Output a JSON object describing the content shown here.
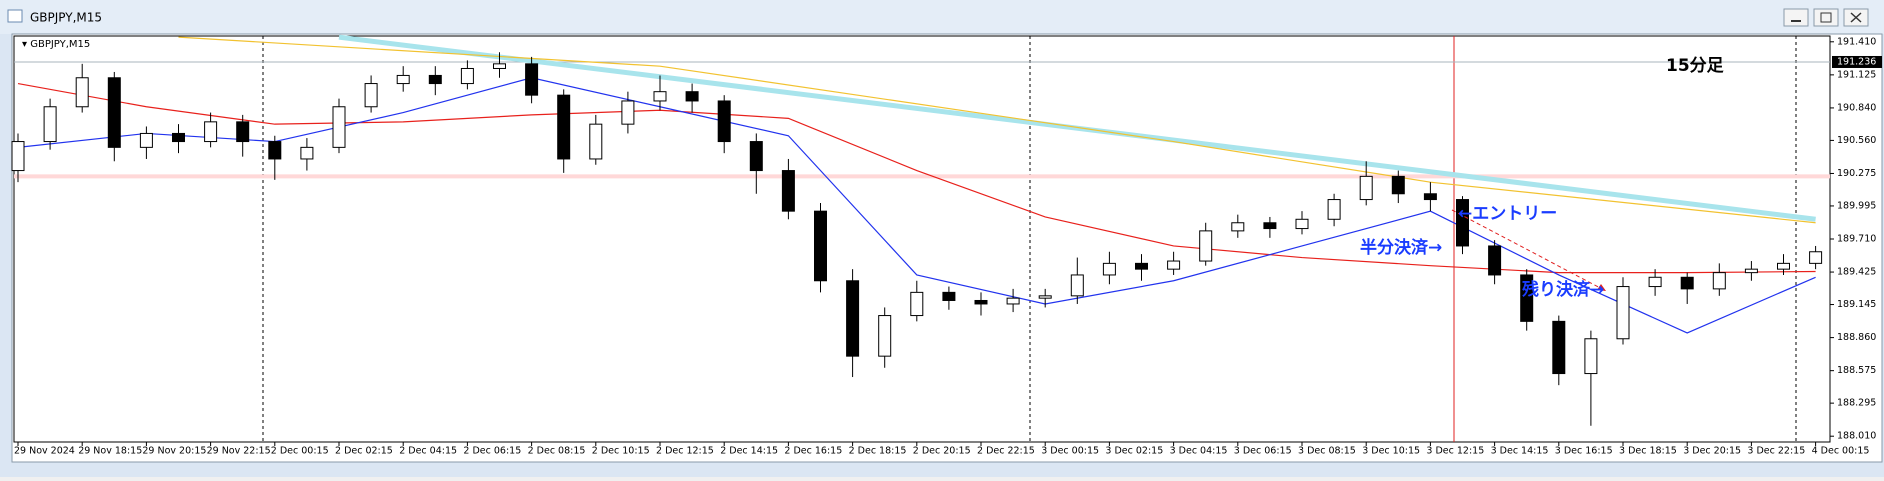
{
  "window_title": "GBPJPY,M15",
  "chart_data": {
    "type": "candlestick",
    "symbol_label": "GBPJPY,M15",
    "timeframe_note": "15分足",
    "up_color": "#ffffff",
    "down_color": "#000000",
    "ylim": [
      187.96,
      191.46
    ],
    "yticks": [
      {
        "value": 191.41,
        "label": "191.410"
      },
      191.125,
      {
        "value": 190.84,
        "label": "190.840"
      },
      {
        "value": 190.56,
        "label": "190.560"
      },
      190.275,
      189.995,
      {
        "value": 189.71,
        "label": "189.710"
      },
      189.425,
      189.145,
      {
        "value": 188.86,
        "label": "188.860"
      },
      188.575,
      188.295,
      {
        "value": 188.01,
        "label": "188.010"
      }
    ],
    "xticks": [
      {
        "value": 0,
        "label": "29 Nov 2024"
      },
      {
        "value": 2,
        "label": "29 Nov 18:15"
      },
      {
        "value": 4,
        "label": "29 Nov 20:15"
      },
      {
        "value": 6,
        "label": "29 Nov 22:15"
      },
      {
        "value": 8,
        "label": "2 Dec 00:15"
      },
      {
        "value": 10,
        "label": "2 Dec 02:15"
      },
      {
        "value": 12,
        "label": "2 Dec 04:15"
      },
      {
        "value": 14,
        "label": "2 Dec 06:15"
      },
      {
        "value": 16,
        "label": "2 Dec 08:15"
      },
      {
        "value": 18,
        "label": "2 Dec 10:15"
      },
      {
        "value": 20,
        "label": "2 Dec 12:15"
      },
      {
        "value": 22,
        "label": "2 Dec 14:15"
      },
      {
        "value": 24,
        "label": "2 Dec 16:15"
      },
      {
        "value": 26,
        "label": "2 Dec 18:15"
      },
      {
        "value": 28,
        "label": "2 Dec 20:15"
      },
      {
        "value": 30,
        "label": "2 Dec 22:15"
      },
      {
        "value": 32,
        "label": "3 Dec 00:15"
      },
      {
        "value": 34,
        "label": "3 Dec 02:15"
      },
      {
        "value": 36,
        "label": "3 Dec 04:15"
      },
      {
        "value": 38,
        "label": "3 Dec 06:15"
      },
      {
        "value": 40,
        "label": "3 Dec 08:15"
      },
      {
        "value": 42,
        "label": "3 Dec 10:15"
      },
      {
        "value": 44,
        "label": "3 Dec 12:15"
      },
      {
        "value": 46,
        "label": "3 Dec 14:15"
      },
      {
        "value": 48,
        "label": "3 Dec 16:15"
      },
      {
        "value": 50,
        "label": "3 Dec 18:15"
      },
      {
        "value": 52,
        "label": "3 Dec 20:15"
      },
      {
        "value": 54,
        "label": "3 Dec 22:15"
      },
      {
        "value": 56,
        "label": "4 Dec 00:15"
      }
    ],
    "current_price": 191.236,
    "current_price_color": "#a8b4bc",
    "levels": [
      {
        "value": 190.25,
        "color": "#ffd8d8"
      }
    ],
    "ohlc": [
      [
        190.3,
        190.62,
        190.2,
        190.55
      ],
      [
        190.55,
        190.92,
        190.48,
        190.85
      ],
      [
        190.85,
        191.22,
        190.8,
        191.1
      ],
      [
        191.1,
        191.15,
        190.38,
        190.5
      ],
      [
        190.5,
        190.68,
        190.4,
        190.62
      ],
      [
        190.62,
        190.7,
        190.45,
        190.55
      ],
      [
        190.55,
        190.8,
        190.5,
        190.72
      ],
      [
        190.72,
        190.78,
        190.42,
        190.55
      ],
      [
        190.55,
        190.6,
        190.22,
        190.4
      ],
      [
        190.4,
        190.58,
        190.3,
        190.5
      ],
      [
        190.5,
        190.92,
        190.45,
        190.85
      ],
      [
        190.85,
        191.12,
        190.8,
        191.05
      ],
      [
        191.05,
        191.2,
        190.98,
        191.12
      ],
      [
        191.12,
        191.2,
        190.95,
        191.05
      ],
      [
        191.05,
        191.25,
        191.0,
        191.18
      ],
      [
        191.18,
        191.32,
        191.1,
        191.22
      ],
      [
        191.22,
        191.28,
        190.88,
        190.95
      ],
      [
        190.95,
        191.0,
        190.28,
        190.4
      ],
      [
        190.4,
        190.78,
        190.35,
        190.7
      ],
      [
        190.7,
        190.98,
        190.62,
        190.9
      ],
      [
        190.9,
        191.12,
        190.82,
        190.98
      ],
      [
        190.98,
        191.05,
        190.8,
        190.9
      ],
      [
        190.9,
        190.95,
        190.45,
        190.55
      ],
      [
        190.55,
        190.62,
        190.1,
        190.3
      ],
      [
        190.3,
        190.4,
        189.88,
        189.95
      ],
      [
        189.95,
        190.02,
        189.25,
        189.35
      ],
      [
        189.35,
        189.45,
        188.52,
        188.7
      ],
      [
        188.7,
        189.12,
        188.6,
        189.05
      ],
      [
        189.05,
        189.35,
        189.0,
        189.25
      ],
      [
        189.25,
        189.3,
        189.1,
        189.18
      ],
      [
        189.18,
        189.25,
        189.05,
        189.15
      ],
      [
        189.15,
        189.28,
        189.08,
        189.2
      ],
      [
        189.2,
        189.28,
        189.12,
        189.22
      ],
      [
        189.22,
        189.55,
        189.15,
        189.4
      ],
      [
        189.4,
        189.6,
        189.32,
        189.5
      ],
      [
        189.5,
        189.58,
        189.35,
        189.45
      ],
      [
        189.45,
        189.6,
        189.4,
        189.52
      ],
      [
        189.52,
        189.85,
        189.48,
        189.78
      ],
      [
        189.78,
        189.92,
        189.72,
        189.85
      ],
      [
        189.85,
        189.9,
        189.72,
        189.8
      ],
      [
        189.8,
        189.95,
        189.75,
        189.88
      ],
      [
        189.88,
        190.1,
        189.82,
        190.05
      ],
      [
        190.05,
        190.38,
        190.0,
        190.25
      ],
      [
        190.25,
        190.3,
        190.02,
        190.1
      ],
      [
        190.1,
        190.2,
        189.95,
        190.05
      ],
      [
        190.05,
        190.08,
        189.58,
        189.65
      ],
      [
        189.65,
        189.7,
        189.32,
        189.4
      ],
      [
        189.4,
        189.45,
        188.92,
        189.0
      ],
      [
        189.0,
        189.05,
        188.45,
        188.55
      ],
      [
        188.55,
        188.92,
        188.1,
        188.85
      ],
      [
        188.85,
        189.38,
        188.8,
        189.3
      ],
      [
        189.3,
        189.45,
        189.22,
        189.38
      ],
      [
        189.38,
        189.42,
        189.15,
        189.28
      ],
      [
        189.28,
        189.5,
        189.22,
        189.42
      ],
      [
        189.42,
        189.52,
        189.35,
        189.45
      ],
      [
        189.45,
        189.58,
        189.4,
        189.5
      ],
      [
        189.5,
        189.65,
        189.45,
        189.6
      ]
    ],
    "indicators": [
      {
        "color": "#a8e4ec",
        "width": 5,
        "x": [
          10,
          56
        ],
        "values": [
          191.45,
          189.88
        ]
      },
      {
        "color": "#f2c230",
        "width": 1.2,
        "x": [
          5,
          20,
          36,
          44,
          56
        ],
        "values": [
          191.45,
          191.2,
          190.55,
          190.2,
          189.85
        ]
      },
      {
        "color": "#e8211c",
        "width": 1.2,
        "x": [
          0,
          4,
          8,
          12,
          16,
          20,
          24,
          28,
          32,
          36,
          40,
          44,
          48,
          52,
          56
        ],
        "values": [
          191.05,
          190.85,
          190.7,
          190.72,
          190.78,
          190.82,
          190.75,
          190.3,
          189.9,
          189.65,
          189.55,
          189.48,
          189.42,
          189.42,
          189.43
        ]
      },
      {
        "color": "#2233ee",
        "width": 1.2,
        "x": [
          0,
          4,
          8,
          12,
          16,
          20,
          24,
          28,
          32,
          36,
          40,
          44,
          48,
          52,
          56
        ],
        "values": [
          190.5,
          190.62,
          190.55,
          190.8,
          191.1,
          190.85,
          190.6,
          189.4,
          189.15,
          189.35,
          189.65,
          189.95,
          189.4,
          188.9,
          189.38
        ]
      }
    ],
    "annotations": [
      "←エントリー",
      "半分決済→",
      "残り決済→"
    ]
  }
}
